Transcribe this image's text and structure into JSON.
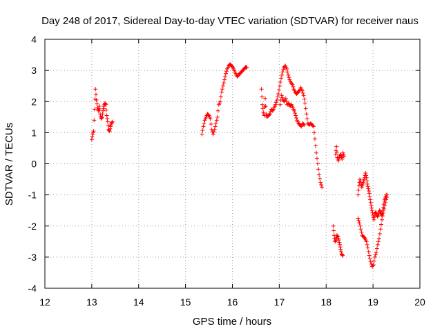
{
  "chart_data": {
    "type": "scatter",
    "title": "Day 248 of 2017, Sidereal Day-to-day VTEC variation (SDTVAR) for receiver naus",
    "xlabel": "GPS time / hours",
    "ylabel": "SDTVAR / TECUs",
    "xlim": [
      12,
      20
    ],
    "ylim": [
      -4,
      4
    ],
    "xticks": [
      "12",
      "13",
      "14",
      "15",
      "16",
      "17",
      "18",
      "19",
      "20"
    ],
    "yticks": [
      "4",
      "3",
      "2",
      "1",
      "0",
      "-1",
      "-2",
      "-3",
      "-4"
    ],
    "grid": true,
    "marker": "+",
    "series": [
      {
        "name": "SDTVAR",
        "color": "#ff0000",
        "segments": [
          [
            [
              13.0,
              0.78
            ],
            [
              13.02,
              0.95
            ],
            [
              13.04,
              1.05
            ],
            [
              13.06,
              1.75
            ],
            [
              13.08,
              2.4
            ],
            [
              13.1,
              2.05
            ],
            [
              13.12,
              1.8
            ],
            [
              13.14,
              1.7
            ],
            [
              13.16,
              1.85
            ],
            [
              13.18,
              1.6
            ],
            [
              13.2,
              1.45
            ],
            [
              13.22,
              1.5
            ],
            [
              13.24,
              1.7
            ],
            [
              13.26,
              1.85
            ],
            [
              13.28,
              1.95
            ],
            [
              13.3,
              1.9
            ],
            [
              13.32,
              1.55
            ],
            [
              13.34,
              1.35
            ],
            [
              13.36,
              1.1
            ],
            [
              13.38,
              1.05
            ],
            [
              13.4,
              1.2
            ],
            [
              13.42,
              1.3
            ],
            [
              13.44,
              1.35
            ]
          ],
          [
            [
              15.35,
              0.95
            ],
            [
              15.38,
              1.2
            ],
            [
              15.41,
              1.4
            ],
            [
              15.44,
              1.5
            ],
            [
              15.47,
              1.6
            ],
            [
              15.5,
              1.55
            ],
            [
              15.53,
              1.45
            ],
            [
              15.56,
              1.1
            ],
            [
              15.59,
              0.95
            ],
            [
              15.62,
              1.1
            ],
            [
              15.65,
              1.3
            ],
            [
              15.68,
              1.5
            ],
            [
              15.71,
              1.9
            ],
            [
              15.74,
              2.0
            ],
            [
              15.77,
              2.3
            ],
            [
              15.8,
              2.5
            ],
            [
              15.83,
              2.7
            ],
            [
              15.86,
              2.9
            ],
            [
              15.89,
              3.05
            ],
            [
              15.92,
              3.15
            ],
            [
              15.95,
              3.2
            ],
            [
              15.98,
              3.15
            ],
            [
              16.01,
              3.1
            ],
            [
              16.04,
              3.0
            ],
            [
              16.07,
              2.9
            ],
            [
              16.1,
              2.8
            ],
            [
              16.13,
              2.85
            ],
            [
              16.16,
              2.9
            ],
            [
              16.19,
              2.95
            ],
            [
              16.22,
              3.0
            ],
            [
              16.25,
              3.05
            ],
            [
              16.28,
              3.1
            ],
            [
              16.31,
              3.1
            ]
          ],
          [
            [
              16.62,
              2.4
            ],
            [
              16.64,
              1.9
            ],
            [
              16.66,
              1.65
            ],
            [
              16.68,
              1.55
            ],
            [
              16.7,
              2.1
            ],
            [
              16.72,
              1.6
            ],
            [
              16.74,
              1.5
            ],
            [
              16.77,
              1.55
            ],
            [
              16.8,
              1.6
            ],
            [
              16.83,
              1.75
            ],
            [
              16.86,
              1.7
            ],
            [
              16.89,
              1.8
            ],
            [
              16.92,
              1.9
            ],
            [
              16.95,
              2.05
            ],
            [
              16.98,
              2.25
            ],
            [
              17.01,
              2.5
            ],
            [
              17.04,
              2.75
            ],
            [
              17.07,
              2.95
            ],
            [
              17.1,
              3.1
            ],
            [
              17.13,
              3.15
            ],
            [
              17.16,
              3.05
            ],
            [
              17.19,
              2.85
            ],
            [
              17.22,
              2.7
            ],
            [
              17.25,
              2.6
            ],
            [
              17.28,
              2.55
            ],
            [
              17.31,
              2.4
            ],
            [
              17.34,
              2.3
            ],
            [
              17.37,
              2.25
            ],
            [
              17.4,
              2.3
            ],
            [
              17.43,
              2.35
            ],
            [
              17.46,
              2.45
            ],
            [
              17.49,
              2.35
            ],
            [
              17.52,
              2.2
            ],
            [
              17.55,
              1.95
            ],
            [
              17.58,
              1.6
            ],
            [
              17.61,
              1.3
            ],
            [
              17.64,
              1.25
            ],
            [
              17.67,
              1.3
            ],
            [
              17.7,
              1.25
            ],
            [
              17.73,
              1.2
            ],
            [
              17.76,
              0.8
            ],
            [
              17.79,
              0.35
            ],
            [
              17.82,
              0.0
            ],
            [
              17.85,
              -0.35
            ],
            [
              17.88,
              -0.6
            ],
            [
              17.91,
              -0.75
            ]
          ],
          [
            [
              17.02,
              1.9
            ],
            [
              17.05,
              2.2
            ],
            [
              17.08,
              2.05
            ],
            [
              17.11,
              2.0
            ],
            [
              17.14,
              2.1
            ],
            [
              17.17,
              1.9
            ],
            [
              17.2,
              1.95
            ],
            [
              17.23,
              1.85
            ],
            [
              17.26,
              1.9
            ],
            [
              17.29,
              1.8
            ],
            [
              17.32,
              1.7
            ],
            [
              17.35,
              1.55
            ],
            [
              17.38,
              1.4
            ],
            [
              17.41,
              1.3
            ],
            [
              17.44,
              1.25
            ],
            [
              17.47,
              1.2
            ],
            [
              17.5,
              1.3
            ],
            [
              17.53,
              1.25
            ]
          ],
          [
            [
              18.15,
              -2.0
            ],
            [
              18.17,
              -2.3
            ],
            [
              18.19,
              -2.5
            ],
            [
              18.21,
              -2.45
            ],
            [
              18.23,
              -2.3
            ],
            [
              18.25,
              -2.35
            ],
            [
              18.27,
              -2.45
            ],
            [
              18.29,
              -2.6
            ],
            [
              18.31,
              -2.75
            ],
            [
              18.33,
              -2.9
            ],
            [
              18.35,
              -2.95
            ]
          ],
          [
            [
              18.2,
              0.3
            ],
            [
              18.22,
              0.55
            ],
            [
              18.24,
              0.2
            ],
            [
              18.26,
              0.1
            ],
            [
              18.28,
              0.2
            ],
            [
              18.3,
              0.3
            ],
            [
              18.32,
              0.25
            ],
            [
              18.34,
              0.15
            ],
            [
              18.36,
              0.35
            ],
            [
              18.38,
              0.25
            ]
          ],
          [
            [
              18.68,
              -1.0
            ],
            [
              18.7,
              -0.7
            ],
            [
              18.72,
              -0.5
            ],
            [
              18.74,
              -0.6
            ],
            [
              18.76,
              -0.75
            ],
            [
              18.78,
              -0.65
            ],
            [
              18.8,
              -0.55
            ],
            [
              18.82,
              -0.45
            ],
            [
              18.84,
              -0.3
            ],
            [
              18.86,
              -0.45
            ],
            [
              18.88,
              -0.65
            ],
            [
              18.9,
              -0.8
            ],
            [
              18.92,
              -0.95
            ],
            [
              18.94,
              -1.15
            ],
            [
              18.96,
              -1.35
            ],
            [
              18.98,
              -1.5
            ],
            [
              19.0,
              -1.65
            ],
            [
              19.02,
              -1.8
            ],
            [
              19.04,
              -1.6
            ],
            [
              19.06,
              -1.55
            ],
            [
              19.08,
              -1.65
            ],
            [
              19.1,
              -1.7
            ],
            [
              19.12,
              -1.6
            ],
            [
              19.14,
              -1.5
            ],
            [
              19.16,
              -1.55
            ],
            [
              19.18,
              -1.65
            ],
            [
              19.2,
              -1.6
            ],
            [
              19.22,
              -1.4
            ],
            [
              19.24,
              -1.2
            ],
            [
              19.26,
              -1.1
            ],
            [
              19.28,
              -1.0
            ]
          ],
          [
            [
              18.68,
              -1.75
            ],
            [
              18.71,
              -1.9
            ],
            [
              18.74,
              -2.1
            ],
            [
              18.77,
              -2.3
            ],
            [
              18.8,
              -2.35
            ],
            [
              18.83,
              -2.4
            ],
            [
              18.86,
              -2.5
            ],
            [
              18.89,
              -2.7
            ],
            [
              18.92,
              -2.95
            ],
            [
              18.95,
              -3.15
            ],
            [
              18.98,
              -3.3
            ],
            [
              19.01,
              -3.25
            ],
            [
              19.04,
              -3.0
            ],
            [
              19.07,
              -2.85
            ],
            [
              19.1,
              -2.6
            ],
            [
              19.13,
              -2.4
            ],
            [
              19.16,
              -2.1
            ],
            [
              19.19,
              -1.8
            ],
            [
              19.22,
              -1.55
            ],
            [
              19.25,
              -1.35
            ],
            [
              19.28,
              -1.15
            ],
            [
              19.3,
              -1.0
            ]
          ]
        ]
      }
    ]
  }
}
